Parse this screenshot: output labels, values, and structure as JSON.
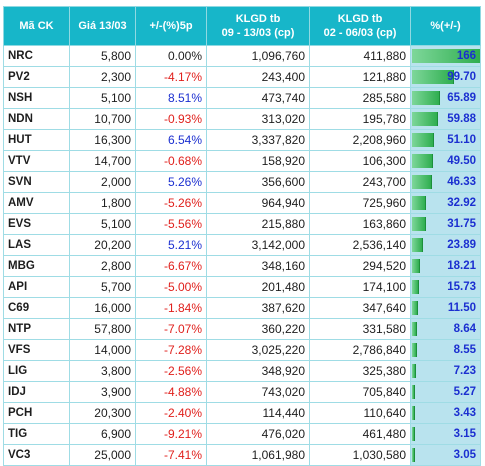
{
  "headers": {
    "ticker": "Mã CK",
    "price": "Giá 13/03",
    "change": "+/-(%)5p",
    "vol1_line1": "KLGD tb",
    "vol1_line2": "09 - 13/03 (cp)",
    "vol2_line1": "KLGD tb",
    "vol2_line2": "02 - 06/03 (cp)",
    "growth": "%(+/-)"
  },
  "colors": {
    "header_bg": "#17b6c9",
    "positive": "#1b2fd0",
    "negative": "#e0201c",
    "neutral": "#1d1d1d",
    "bar_fill": "#2fae4f",
    "bar_bg": "#b9e3ee"
  },
  "rows": [
    {
      "ticker": "NRC",
      "price": "5,800",
      "change": "0.00%",
      "change_sign": "neutral",
      "vol1": "1,096,760",
      "vol2": "411,880",
      "growth": "166",
      "growth_value": 166
    },
    {
      "ticker": "PV2",
      "price": "2,300",
      "change": "-4.17%",
      "change_sign": "negative",
      "vol1": "243,400",
      "vol2": "121,880",
      "growth": "99.70",
      "growth_value": 99.7
    },
    {
      "ticker": "NSH",
      "price": "5,100",
      "change": "8.51%",
      "change_sign": "positive",
      "vol1": "473,740",
      "vol2": "285,580",
      "growth": "65.89",
      "growth_value": 65.89
    },
    {
      "ticker": "NDN",
      "price": "10,700",
      "change": "-0.93%",
      "change_sign": "negative",
      "vol1": "313,020",
      "vol2": "195,780",
      "growth": "59.88",
      "growth_value": 59.88
    },
    {
      "ticker": "HUT",
      "price": "16,300",
      "change": "6.54%",
      "change_sign": "positive",
      "vol1": "3,337,820",
      "vol2": "2,208,960",
      "growth": "51.10",
      "growth_value": 51.1
    },
    {
      "ticker": "VTV",
      "price": "14,700",
      "change": "-0.68%",
      "change_sign": "negative",
      "vol1": "158,920",
      "vol2": "106,300",
      "growth": "49.50",
      "growth_value": 49.5
    },
    {
      "ticker": "SVN",
      "price": "2,000",
      "change": "5.26%",
      "change_sign": "positive",
      "vol1": "356,600",
      "vol2": "243,700",
      "growth": "46.33",
      "growth_value": 46.33
    },
    {
      "ticker": "AMV",
      "price": "1,800",
      "change": "-5.26%",
      "change_sign": "negative",
      "vol1": "964,940",
      "vol2": "725,960",
      "growth": "32.92",
      "growth_value": 32.92
    },
    {
      "ticker": "EVS",
      "price": "5,100",
      "change": "-5.56%",
      "change_sign": "negative",
      "vol1": "215,880",
      "vol2": "163,860",
      "growth": "31.75",
      "growth_value": 31.75
    },
    {
      "ticker": "LAS",
      "price": "20,200",
      "change": "5.21%",
      "change_sign": "positive",
      "vol1": "3,142,000",
      "vol2": "2,536,140",
      "growth": "23.89",
      "growth_value": 23.89
    },
    {
      "ticker": "MBG",
      "price": "2,800",
      "change": "-6.67%",
      "change_sign": "negative",
      "vol1": "348,160",
      "vol2": "294,520",
      "growth": "18.21",
      "growth_value": 18.21
    },
    {
      "ticker": "API",
      "price": "5,700",
      "change": "-5.00%",
      "change_sign": "negative",
      "vol1": "201,480",
      "vol2": "174,100",
      "growth": "15.73",
      "growth_value": 15.73
    },
    {
      "ticker": "C69",
      "price": "16,000",
      "change": "-1.84%",
      "change_sign": "negative",
      "vol1": "387,620",
      "vol2": "347,640",
      "growth": "11.50",
      "growth_value": 11.5
    },
    {
      "ticker": "NTP",
      "price": "57,800",
      "change": "-7.07%",
      "change_sign": "negative",
      "vol1": "360,220",
      "vol2": "331,580",
      "growth": "8.64",
      "growth_value": 8.64
    },
    {
      "ticker": "VFS",
      "price": "14,000",
      "change": "-7.28%",
      "change_sign": "negative",
      "vol1": "3,025,220",
      "vol2": "2,786,840",
      "growth": "8.55",
      "growth_value": 8.55
    },
    {
      "ticker": "LIG",
      "price": "3,800",
      "change": "-2.56%",
      "change_sign": "negative",
      "vol1": "348,920",
      "vol2": "325,380",
      "growth": "7.23",
      "growth_value": 7.23
    },
    {
      "ticker": "IDJ",
      "price": "3,900",
      "change": "-4.88%",
      "change_sign": "negative",
      "vol1": "743,020",
      "vol2": "705,840",
      "growth": "5.27",
      "growth_value": 5.27
    },
    {
      "ticker": "PCH",
      "price": "20,300",
      "change": "-2.40%",
      "change_sign": "negative",
      "vol1": "114,440",
      "vol2": "110,640",
      "growth": "3.43",
      "growth_value": 3.43
    },
    {
      "ticker": "TIG",
      "price": "6,900",
      "change": "-9.21%",
      "change_sign": "negative",
      "vol1": "476,020",
      "vol2": "461,480",
      "growth": "3.15",
      "growth_value": 3.15
    },
    {
      "ticker": "VC3",
      "price": "25,000",
      "change": "-7.41%",
      "change_sign": "negative",
      "vol1": "1,061,980",
      "vol2": "1,030,580",
      "growth": "3.05",
      "growth_value": 3.05
    }
  ]
}
